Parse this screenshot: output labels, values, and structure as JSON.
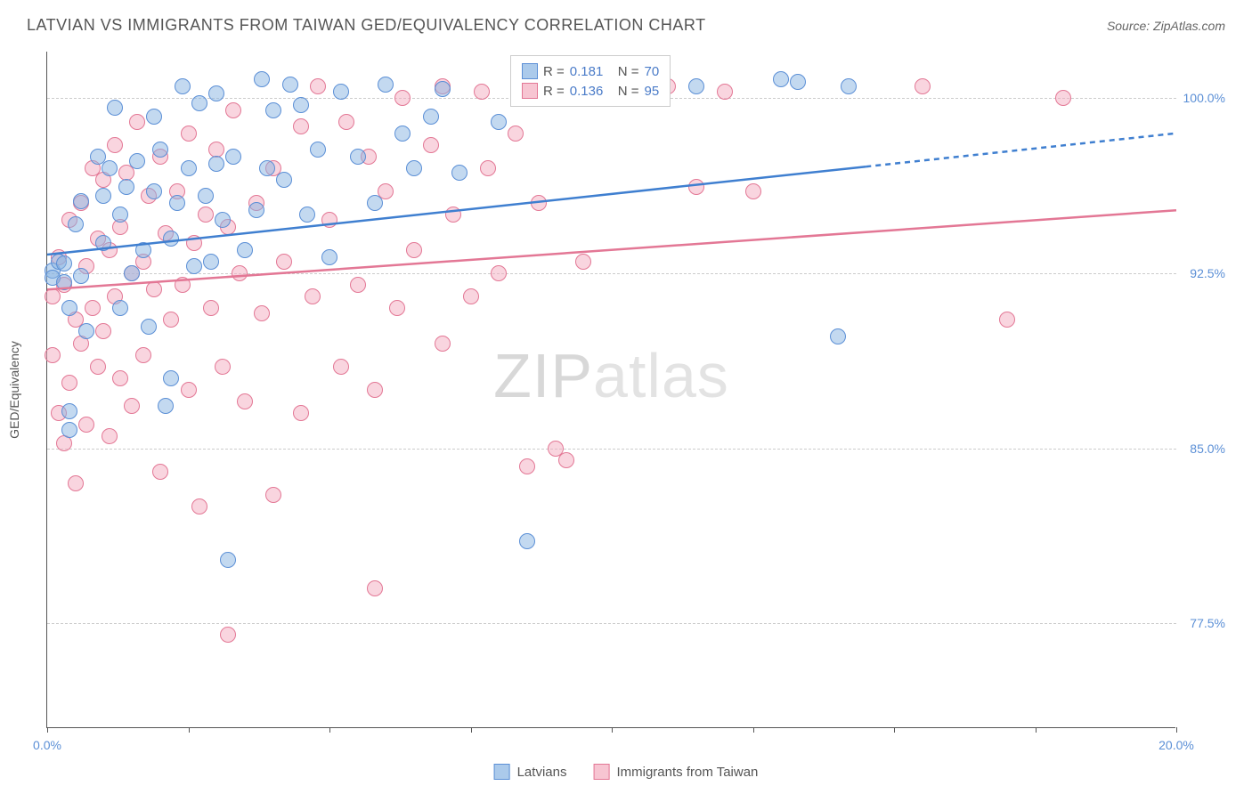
{
  "header": {
    "title": "LATVIAN VS IMMIGRANTS FROM TAIWAN GED/EQUIVALENCY CORRELATION CHART",
    "source": "Source: ZipAtlas.com"
  },
  "chart": {
    "type": "scatter",
    "y_axis_label": "GED/Equivalency",
    "watermark_a": "ZIP",
    "watermark_b": "atlas",
    "xlim": [
      0,
      20
    ],
    "ylim": [
      73,
      102
    ],
    "x_ticks": [
      0,
      2.5,
      5,
      7.5,
      10,
      12.5,
      15,
      17.5,
      20
    ],
    "x_tick_labels": {
      "0": "0.0%",
      "20": "20.0%"
    },
    "y_gridlines": [
      77.5,
      85.0,
      92.5,
      100.0
    ],
    "y_tick_labels": [
      "77.5%",
      "85.0%",
      "92.5%",
      "100.0%"
    ],
    "colors": {
      "blue_fill": "rgba(135,179,226,0.5)",
      "blue_border": "#5b8fd6",
      "pink_fill": "rgba(244,172,191,0.5)",
      "pink_border": "#e37795",
      "blue_line": "#3f7fd0",
      "pink_line": "#e37795",
      "grid": "#cccccc",
      "axis": "#555555",
      "tick_text": "#5b8fd6",
      "label_text": "#555555",
      "legend_value": "#4a7bc8"
    },
    "marker_radius": 9,
    "line_width": 2.5,
    "legend_top": {
      "series": [
        {
          "color": "blue",
          "r_label": "R =",
          "r_val": "0.181",
          "n_label": "N =",
          "n_val": "70"
        },
        {
          "color": "pink",
          "r_label": "R =",
          "r_val": "0.136",
          "n_label": "N =",
          "n_val": "95"
        }
      ]
    },
    "legend_bottom": [
      {
        "color": "blue",
        "label": "Latvians"
      },
      {
        "color": "pink",
        "label": "Immigrants from Taiwan"
      }
    ],
    "trend_lines": {
      "blue": {
        "x1": 0,
        "y1": 93.3,
        "x2": 20,
        "y2": 98.5,
        "solid_until_x": 14.5
      },
      "pink": {
        "x1": 0,
        "y1": 91.8,
        "x2": 20,
        "y2": 95.2,
        "solid_until_x": 20
      }
    },
    "series_blue": [
      [
        0.1,
        92.6
      ],
      [
        0.1,
        92.3
      ],
      [
        0.2,
        93.0
      ],
      [
        0.3,
        92.1
      ],
      [
        0.3,
        92.9
      ],
      [
        0.4,
        91.0
      ],
      [
        0.4,
        86.6
      ],
      [
        0.4,
        85.8
      ],
      [
        0.5,
        94.6
      ],
      [
        0.6,
        95.6
      ],
      [
        0.6,
        92.4
      ],
      [
        0.7,
        90.0
      ],
      [
        0.9,
        97.5
      ],
      [
        1.0,
        95.8
      ],
      [
        1.0,
        93.8
      ],
      [
        1.1,
        97.0
      ],
      [
        1.2,
        99.6
      ],
      [
        1.3,
        95.0
      ],
      [
        1.3,
        91.0
      ],
      [
        1.4,
        96.2
      ],
      [
        1.5,
        92.5
      ],
      [
        1.6,
        97.3
      ],
      [
        1.7,
        93.5
      ],
      [
        1.8,
        90.2
      ],
      [
        1.9,
        99.2
      ],
      [
        1.9,
        96.0
      ],
      [
        2.0,
        97.8
      ],
      [
        2.1,
        86.8
      ],
      [
        2.2,
        94.0
      ],
      [
        2.2,
        88.0
      ],
      [
        2.3,
        95.5
      ],
      [
        2.4,
        100.5
      ],
      [
        2.5,
        97.0
      ],
      [
        2.6,
        92.8
      ],
      [
        2.7,
        99.8
      ],
      [
        2.8,
        95.8
      ],
      [
        2.9,
        93.0
      ],
      [
        3.0,
        97.2
      ],
      [
        3.0,
        100.2
      ],
      [
        3.1,
        94.8
      ],
      [
        3.2,
        80.2
      ],
      [
        3.3,
        97.5
      ],
      [
        3.5,
        93.5
      ],
      [
        3.7,
        95.2
      ],
      [
        3.8,
        100.8
      ],
      [
        3.9,
        97.0
      ],
      [
        4.0,
        99.5
      ],
      [
        4.2,
        96.5
      ],
      [
        4.3,
        100.6
      ],
      [
        4.5,
        99.7
      ],
      [
        4.6,
        95.0
      ],
      [
        4.8,
        97.8
      ],
      [
        5.0,
        93.2
      ],
      [
        5.2,
        100.3
      ],
      [
        5.5,
        97.5
      ],
      [
        5.8,
        95.5
      ],
      [
        6.0,
        100.6
      ],
      [
        6.3,
        98.5
      ],
      [
        6.5,
        97.0
      ],
      [
        6.8,
        99.2
      ],
      [
        7.0,
        100.4
      ],
      [
        7.3,
        96.8
      ],
      [
        8.0,
        99.0
      ],
      [
        8.5,
        81.0
      ],
      [
        9.0,
        100.8
      ],
      [
        11.5,
        100.5
      ],
      [
        13.0,
        100.8
      ],
      [
        13.3,
        100.7
      ],
      [
        14.0,
        89.8
      ],
      [
        14.2,
        100.5
      ]
    ],
    "series_pink": [
      [
        0.1,
        91.5
      ],
      [
        0.1,
        89.0
      ],
      [
        0.2,
        93.2
      ],
      [
        0.2,
        86.5
      ],
      [
        0.3,
        85.2
      ],
      [
        0.3,
        92.0
      ],
      [
        0.4,
        94.8
      ],
      [
        0.4,
        87.8
      ],
      [
        0.5,
        90.5
      ],
      [
        0.5,
        83.5
      ],
      [
        0.6,
        95.5
      ],
      [
        0.6,
        89.5
      ],
      [
        0.7,
        92.8
      ],
      [
        0.7,
        86.0
      ],
      [
        0.8,
        97.0
      ],
      [
        0.8,
        91.0
      ],
      [
        0.9,
        94.0
      ],
      [
        0.9,
        88.5
      ],
      [
        1.0,
        96.5
      ],
      [
        1.0,
        90.0
      ],
      [
        1.1,
        93.5
      ],
      [
        1.1,
        85.5
      ],
      [
        1.2,
        98.0
      ],
      [
        1.2,
        91.5
      ],
      [
        1.3,
        94.5
      ],
      [
        1.3,
        88.0
      ],
      [
        1.4,
        96.8
      ],
      [
        1.5,
        92.5
      ],
      [
        1.5,
        86.8
      ],
      [
        1.6,
        99.0
      ],
      [
        1.7,
        93.0
      ],
      [
        1.7,
        89.0
      ],
      [
        1.8,
        95.8
      ],
      [
        1.9,
        91.8
      ],
      [
        2.0,
        97.5
      ],
      [
        2.0,
        84.0
      ],
      [
        2.1,
        94.2
      ],
      [
        2.2,
        90.5
      ],
      [
        2.3,
        96.0
      ],
      [
        2.4,
        92.0
      ],
      [
        2.5,
        98.5
      ],
      [
        2.5,
        87.5
      ],
      [
        2.6,
        93.8
      ],
      [
        2.7,
        82.5
      ],
      [
        2.8,
        95.0
      ],
      [
        2.9,
        91.0
      ],
      [
        3.0,
        97.8
      ],
      [
        3.1,
        88.5
      ],
      [
        3.2,
        94.5
      ],
      [
        3.2,
        77.0
      ],
      [
        3.3,
        99.5
      ],
      [
        3.4,
        92.5
      ],
      [
        3.5,
        87.0
      ],
      [
        3.7,
        95.5
      ],
      [
        3.8,
        90.8
      ],
      [
        4.0,
        97.0
      ],
      [
        4.0,
        83.0
      ],
      [
        4.2,
        93.0
      ],
      [
        4.5,
        98.8
      ],
      [
        4.5,
        86.5
      ],
      [
        4.7,
        91.5
      ],
      [
        4.8,
        100.5
      ],
      [
        5.0,
        94.8
      ],
      [
        5.2,
        88.5
      ],
      [
        5.3,
        99.0
      ],
      [
        5.5,
        92.0
      ],
      [
        5.7,
        97.5
      ],
      [
        5.8,
        79.0
      ],
      [
        5.8,
        87.5
      ],
      [
        6.0,
        96.0
      ],
      [
        6.2,
        91.0
      ],
      [
        6.3,
        100.0
      ],
      [
        6.5,
        93.5
      ],
      [
        6.8,
        98.0
      ],
      [
        7.0,
        89.5
      ],
      [
        7.0,
        100.5
      ],
      [
        7.2,
        95.0
      ],
      [
        7.5,
        91.5
      ],
      [
        7.7,
        100.3
      ],
      [
        7.8,
        97.0
      ],
      [
        8.0,
        92.5
      ],
      [
        8.3,
        98.5
      ],
      [
        8.5,
        84.2
      ],
      [
        8.7,
        95.5
      ],
      [
        9.0,
        85.0
      ],
      [
        9.2,
        84.5
      ],
      [
        9.5,
        93.0
      ],
      [
        9.8,
        100.0
      ],
      [
        11.0,
        100.5
      ],
      [
        11.5,
        96.2
      ],
      [
        12.0,
        100.3
      ],
      [
        12.5,
        96.0
      ],
      [
        15.5,
        100.5
      ],
      [
        17.0,
        90.5
      ],
      [
        18.0,
        100.0
      ]
    ]
  }
}
